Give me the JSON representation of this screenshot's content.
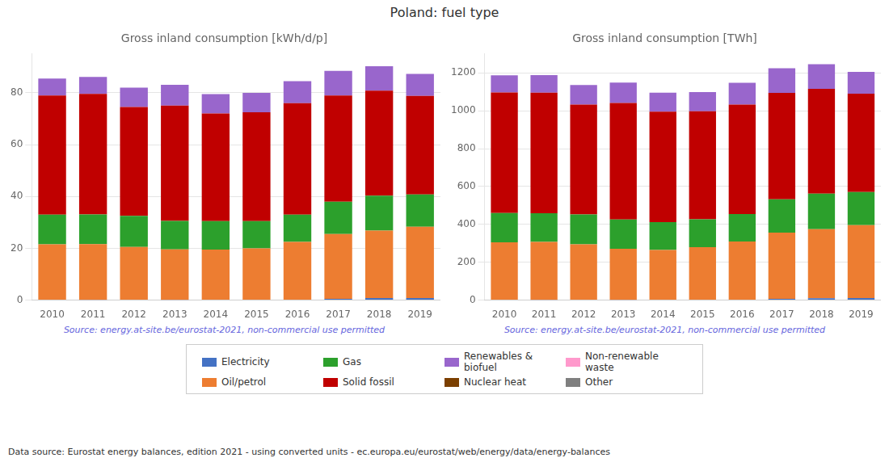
{
  "title": "Poland: fuel type",
  "annotations": [
    "Data source: Eurostat energy balances, edition 2021 - using converted units - ec.europa.eu/eurostat/web/energy/data/energy-balances"
  ],
  "legend": "bottom",
  "legend_order": [
    "Electricity",
    "Gas",
    "Renewables & biofuel",
    "Non-renewable waste",
    "Oil/petrol",
    "Solid fossil",
    "Nuclear heat",
    "Other"
  ],
  "chart_data": [
    {
      "type": "bar",
      "stacked": true,
      "grid": true,
      "title": "Gross inland consumption [kWh/d/p]",
      "annotations": [
        "Source: energy.at-site.be/eurostat-2021, non-commercial use permitted"
      ],
      "categories": [
        "2010",
        "2011",
        "2012",
        "2013",
        "2014",
        "2015",
        "2016",
        "2017",
        "2018",
        "2019"
      ],
      "series": [
        {
          "name": "Electricity",
          "color": "#4472c4",
          "values": [
            0.0,
            0.1,
            0.0,
            0.1,
            0.0,
            0.0,
            0.0,
            0.5,
            0.8,
            0.8
          ]
        },
        {
          "name": "Oil/petrol",
          "color": "#ed7d31",
          "values": [
            21.5,
            21.5,
            20.5,
            19.5,
            19.5,
            20.0,
            22.5,
            25.0,
            26.0,
            27.5
          ]
        },
        {
          "name": "Gas",
          "color": "#2ca02c",
          "values": [
            11.5,
            11.5,
            12.0,
            11.0,
            11.0,
            10.5,
            10.5,
            12.5,
            13.5,
            12.5
          ]
        },
        {
          "name": "Solid fossil",
          "color": "#c00000",
          "values": [
            46.0,
            46.5,
            42.0,
            44.5,
            41.5,
            42.0,
            43.0,
            41.0,
            40.5,
            38.0
          ]
        },
        {
          "name": "Nuclear heat",
          "color": "#7b3f00",
          "values": [
            0.0,
            0.0,
            0.0,
            0.0,
            0.0,
            0.0,
            0.0,
            0.0,
            0.0,
            0.0
          ]
        },
        {
          "name": "Renewables & biofuel",
          "color": "#9966cc",
          "values": [
            6.5,
            6.5,
            7.5,
            8.0,
            7.5,
            7.5,
            8.5,
            9.5,
            9.5,
            8.5
          ]
        },
        {
          "name": "Non-renewable waste",
          "color": "#ff99cc",
          "values": [
            0.0,
            0.0,
            0.0,
            0.0,
            0.0,
            0.0,
            0.0,
            0.0,
            0.0,
            0.0
          ]
        },
        {
          "name": "Other",
          "color": "#7f7f7f",
          "values": [
            0.0,
            0.0,
            0.0,
            0.0,
            0.0,
            0.0,
            0.0,
            0.0,
            0.0,
            0.0
          ]
        }
      ],
      "ylim": [
        0,
        95
      ],
      "yticks": [
        0,
        20,
        40,
        60,
        80
      ]
    },
    {
      "type": "bar",
      "stacked": true,
      "grid": true,
      "title": "Gross inland consumption [TWh]",
      "annotations": [
        "Source: energy.at-site.be/eurostat-2021, non-commercial use permitted"
      ],
      "categories": [
        "2010",
        "2011",
        "2012",
        "2013",
        "2014",
        "2015",
        "2016",
        "2017",
        "2018",
        "2019"
      ],
      "series": [
        {
          "name": "Electricity",
          "color": "#4472c4",
          "values": [
            0.0,
            2.0,
            0.0,
            1.0,
            0.0,
            0.0,
            0.0,
            7.0,
            10.0,
            11.0
          ]
        },
        {
          "name": "Oil/petrol",
          "color": "#ed7d31",
          "values": [
            305.0,
            305.0,
            295.0,
            270.0,
            265.0,
            280.0,
            310.0,
            350.0,
            365.0,
            385.0
          ]
        },
        {
          "name": "Gas",
          "color": "#2ca02c",
          "values": [
            155.0,
            152.0,
            158.0,
            155.0,
            147.0,
            147.0,
            145.0,
            175.0,
            187.0,
            175.0
          ]
        },
        {
          "name": "Solid fossil",
          "color": "#c00000",
          "values": [
            637.0,
            637.0,
            580.0,
            615.0,
            583.0,
            570.0,
            578.0,
            562.0,
            554.0,
            519.0
          ]
        },
        {
          "name": "Nuclear heat",
          "color": "#7b3f00",
          "values": [
            0.0,
            0.0,
            0.0,
            0.0,
            0.0,
            0.0,
            0.0,
            0.0,
            0.0,
            0.0
          ]
        },
        {
          "name": "Renewables & biofuel",
          "color": "#9966cc",
          "values": [
            90.0,
            92.0,
            103.0,
            108.0,
            100.0,
            102.0,
            115.0,
            130.0,
            130.0,
            115.0
          ]
        },
        {
          "name": "Non-renewable waste",
          "color": "#ff99cc",
          "values": [
            0.0,
            0.0,
            0.0,
            0.0,
            0.0,
            0.0,
            0.0,
            0.0,
            0.0,
            0.0
          ]
        },
        {
          "name": "Other",
          "color": "#7f7f7f",
          "values": [
            0.0,
            0.0,
            0.0,
            0.0,
            0.0,
            0.0,
            0.0,
            0.0,
            0.0,
            0.0
          ]
        }
      ],
      "ylim": [
        0,
        1300
      ],
      "yticks": [
        0,
        200,
        400,
        600,
        800,
        1000,
        1200
      ]
    }
  ]
}
